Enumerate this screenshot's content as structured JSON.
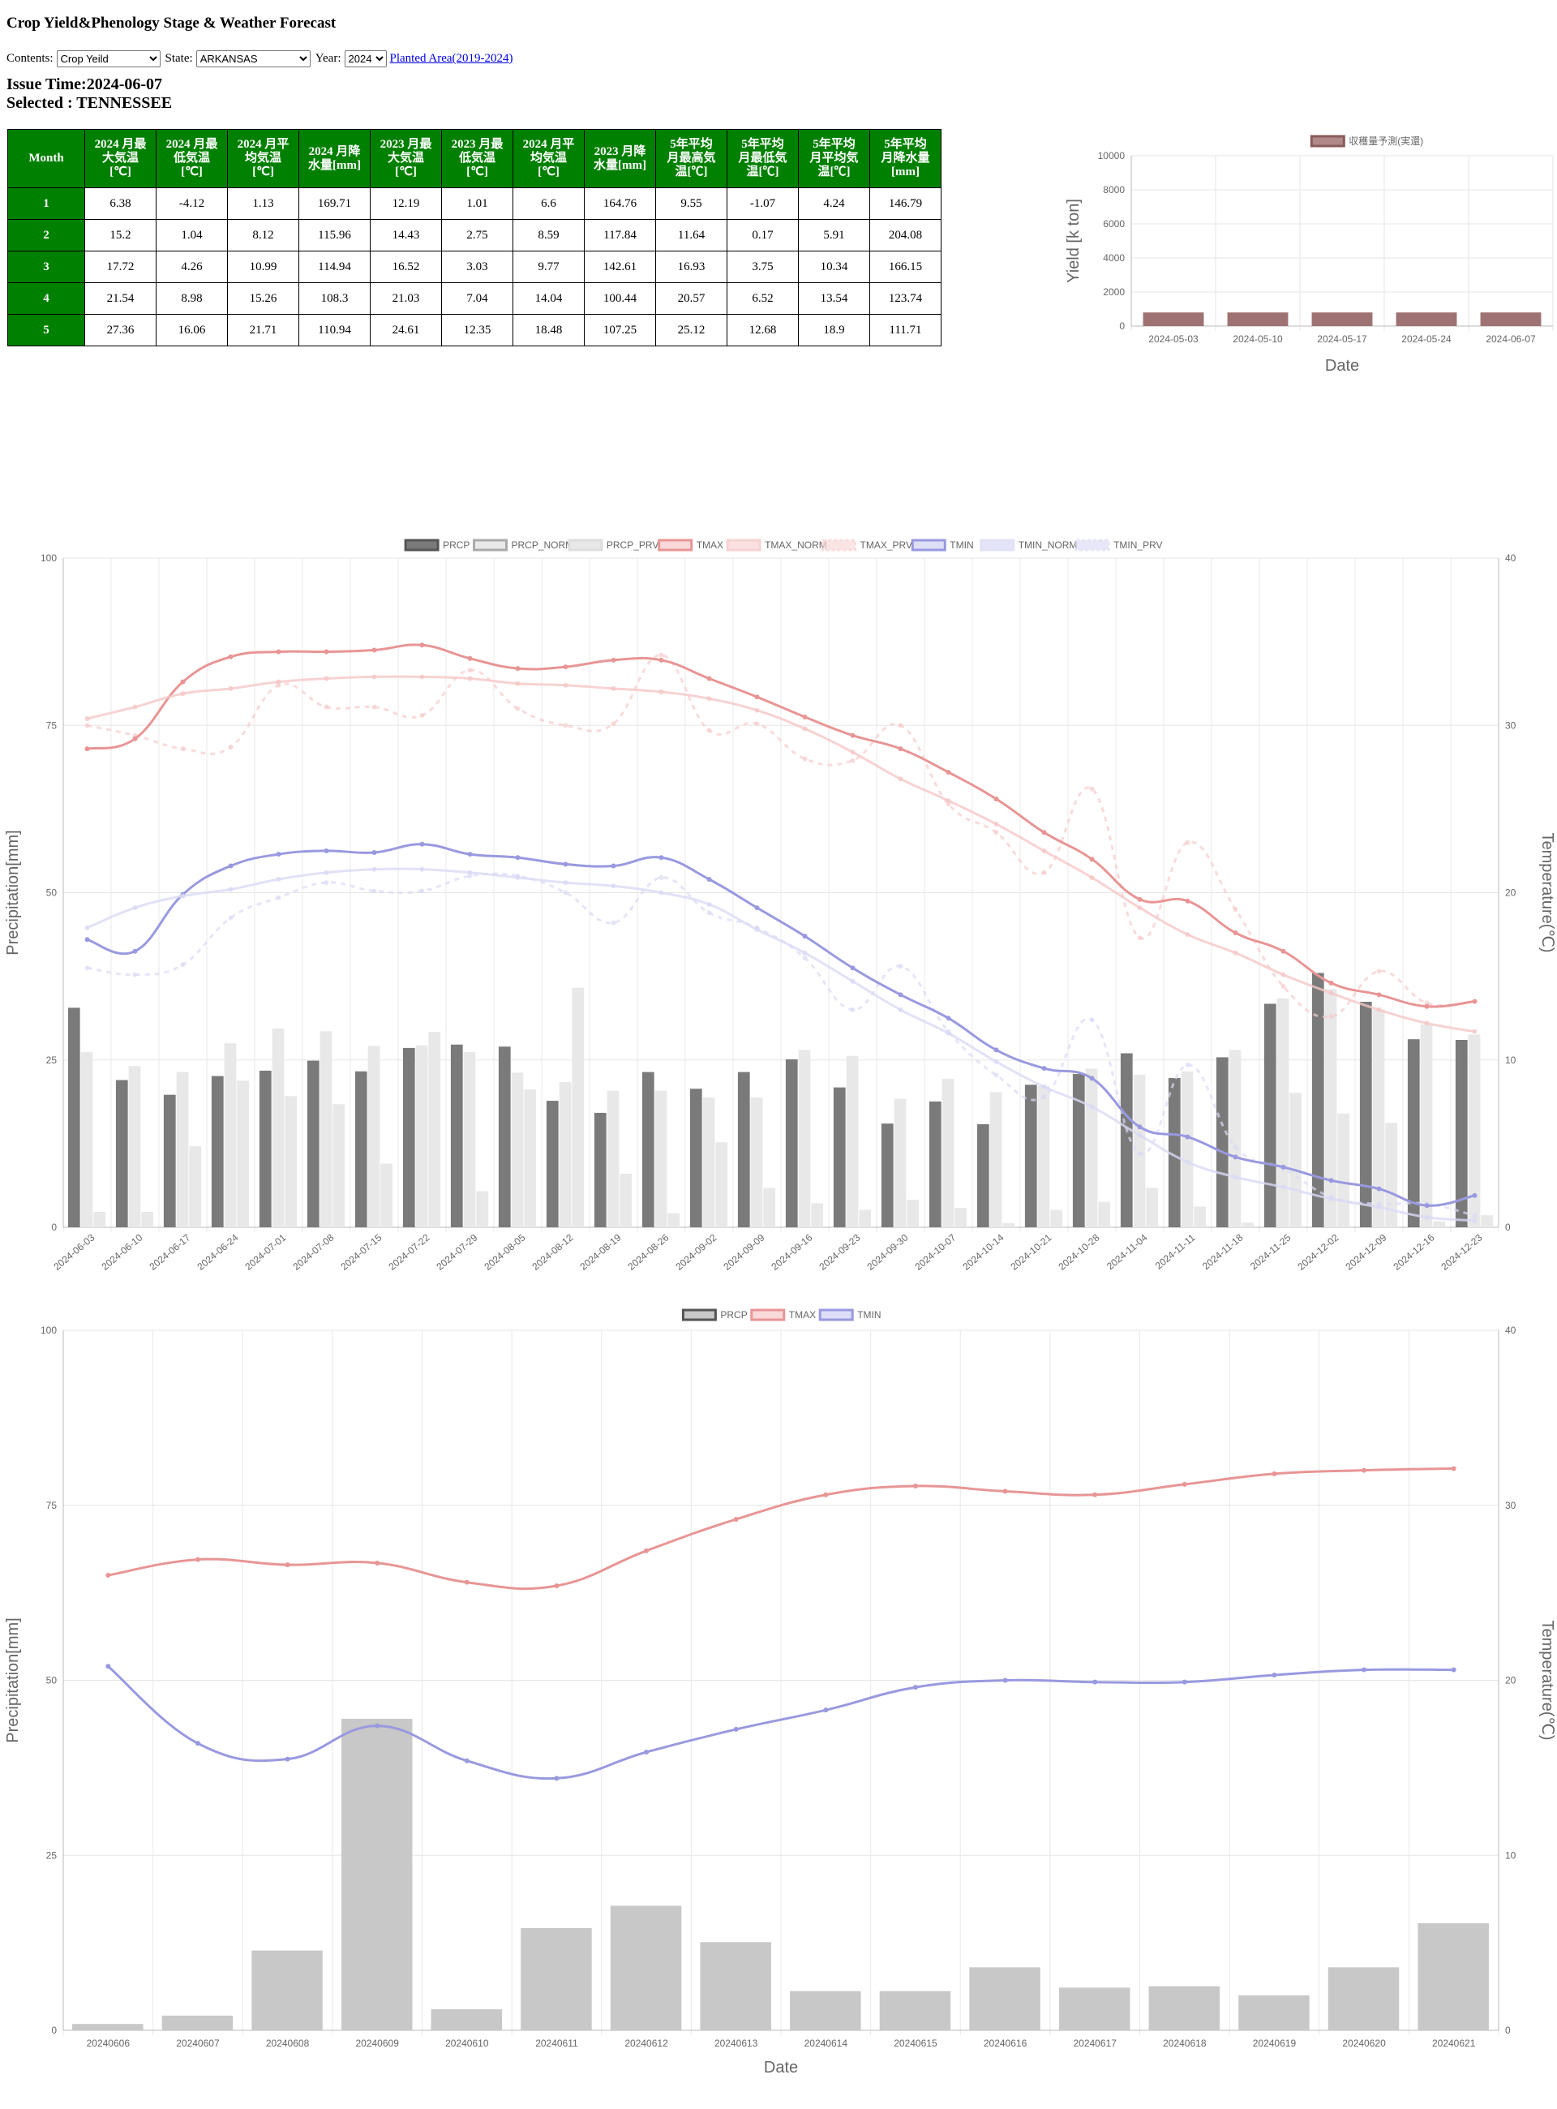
{
  "page": {
    "title": "Crop Yield&Phenology Stage & Weather Forecast",
    "contents_label": "Contents:",
    "contents_value": "Crop Yeild",
    "state_label": "State:",
    "state_value": "ARKANSAS",
    "year_label": "Year:",
    "year_value": "2024",
    "planted_link": "Planted Area(2019-2024)",
    "issue_time": "Issue Time:2024-06-07",
    "selected": "Selected : TENNESSEE"
  },
  "table": {
    "headers": [
      "Month",
      "2024 月最大気温[℃]",
      "2024 月最低気温[℃]",
      "2024 月平均気温[℃]",
      "2024 月降水量[mm]",
      "2023 月最大気温[℃]",
      "2023 月最低気温[℃]",
      "2024 月平均気温[℃]",
      "2023 月降水量[mm]",
      "5年平均月最高気温[℃]",
      "5年平均月最低気温[℃]",
      "5年平均月平均気温[℃]",
      "5年平均月降水量[mm]"
    ],
    "header_lines": [
      [
        "Month"
      ],
      [
        "2024 月最",
        "大気温",
        "[℃]"
      ],
      [
        "2024 月最",
        "低気温",
        "[℃]"
      ],
      [
        "2024 月平",
        "均気温",
        "[℃]"
      ],
      [
        "2024 月降",
        "水量[mm]"
      ],
      [
        "2023 月最",
        "大気温",
        "[℃]"
      ],
      [
        "2023 月最",
        "低気温",
        "[℃]"
      ],
      [
        "2024 月平",
        "均気温",
        "[℃]"
      ],
      [
        "2023 月降",
        "水量[mm]"
      ],
      [
        "5年平均",
        "月最高気",
        "温[℃]"
      ],
      [
        "5年平均",
        "月最低気",
        "温[℃]"
      ],
      [
        "5年平均",
        "月平均気",
        "温[℃]"
      ],
      [
        "5年平均",
        "月降水量",
        "[mm]"
      ]
    ],
    "rows": [
      [
        "1",
        "6.38",
        "-4.12",
        "1.13",
        "169.71",
        "12.19",
        "1.01",
        "6.6",
        "164.76",
        "9.55",
        "-1.07",
        "4.24",
        "146.79"
      ],
      [
        "2",
        "15.2",
        "1.04",
        "8.12",
        "115.96",
        "14.43",
        "2.75",
        "8.59",
        "117.84",
        "11.64",
        "0.17",
        "5.91",
        "204.08"
      ],
      [
        "3",
        "17.72",
        "4.26",
        "10.99",
        "114.94",
        "16.52",
        "3.03",
        "9.77",
        "142.61",
        "16.93",
        "3.75",
        "10.34",
        "166.15"
      ],
      [
        "4",
        "21.54",
        "8.98",
        "15.26",
        "108.3",
        "21.03",
        "7.04",
        "14.04",
        "100.44",
        "20.57",
        "6.52",
        "13.54",
        "123.74"
      ],
      [
        "5",
        "27.36",
        "16.06",
        "21.71",
        "110.94",
        "24.61",
        "12.35",
        "18.48",
        "107.25",
        "25.12",
        "12.68",
        "18.9",
        "111.71"
      ]
    ]
  },
  "chart_data": [
    {
      "type": "bar",
      "categories": [
        "2024-05-03",
        "2024-05-10",
        "2024-05-17",
        "2024-05-24",
        "2024-06-07"
      ],
      "series": [
        {
          "name": "収穫量予測(実還)",
          "values": [
            800,
            800,
            800,
            800,
            800
          ]
        }
      ],
      "xlabel": "Date",
      "ylabel": "Yield [k ton]",
      "ylim": [
        0,
        10000
      ],
      "yticks": [
        0,
        2000,
        4000,
        6000,
        8000,
        10000
      ],
      "colors": {
        "bar": "#9e7272"
      }
    },
    {
      "type": "bar",
      "categories": [
        "2024-06-03",
        "2024-06-10",
        "2024-06-17",
        "2024-06-24",
        "2024-07-01",
        "2024-07-08",
        "2024-07-15",
        "2024-07-22",
        "2024-07-29",
        "2024-08-05",
        "2024-08-12",
        "2024-08-19",
        "2024-08-26",
        "2024-09-02",
        "2024-09-09",
        "2024-09-16",
        "2024-09-23",
        "2024-09-30",
        "2024-10-07",
        "2024-10-14",
        "2024-10-21",
        "2024-10-28",
        "2024-11-04",
        "2024-11-11",
        "2024-11-18",
        "2024-11-25",
        "2024-12-02",
        "2024-12-09",
        "2024-12-16",
        "2024-12-23"
      ],
      "legend": [
        "PRCP",
        "PRCP_NORM",
        "PRCP_PRV",
        "TMAX",
        "TMAX_NORM",
        "TMAX_PRV",
        "TMIN",
        "TMIN_NORM",
        "TMIN_PRV"
      ],
      "bar_series": [
        {
          "name": "PRCP",
          "values": [
            32.8,
            22,
            19.8,
            22.6,
            23.4,
            24.9,
            23.3,
            26.8,
            27.3,
            27,
            18.9,
            17.1,
            23.2,
            20.7,
            23.2,
            25.1,
            20.9,
            15.5,
            18.8,
            15.4,
            21.3,
            22.9,
            26,
            22.3,
            25.4,
            33.4,
            38,
            33.7,
            28.1,
            28
          ],
          "color": "#7a7a7a"
        },
        {
          "name": "PRCP_NORM",
          "values": [
            26.2,
            24.1,
            23.2,
            27.5,
            29.7,
            29.3,
            27.1,
            27.2,
            26.2,
            23.1,
            21.7,
            20.4,
            20.4,
            19.4,
            19.4,
            26.5,
            25.6,
            19.2,
            22.2,
            20.2,
            21.1,
            23.7,
            22.8,
            23.3,
            26.5,
            34.2,
            35.6,
            32.5,
            30.3,
            28.8
          ],
          "color": "#e8e8e8"
        },
        {
          "name": "PRCP_PRV",
          "values": [
            2.3,
            2.3,
            12.1,
            21.9,
            19.6,
            18.4,
            9.5,
            29.2,
            5.4,
            20.6,
            35.8,
            8,
            2.1,
            12.7,
            5.9,
            3.6,
            2.6,
            4.1,
            2.9,
            0.6,
            2.6,
            3.8,
            5.9,
            3.1,
            0.7,
            20.1,
            17,
            15.6,
            0.9,
            1.8
          ],
          "color": "#e8e8e8"
        }
      ],
      "line_series": [
        {
          "name": "TMAX",
          "values": [
            28.6,
            29.2,
            32.6,
            34.1,
            34.4,
            34.4,
            34.5,
            34.8,
            34,
            33.4,
            33.5,
            33.9,
            33.9,
            32.8,
            31.7,
            30.5,
            29.4,
            28.6,
            27.2,
            25.6,
            23.6,
            22,
            19.6,
            19.5,
            17.6,
            16.5,
            14.6,
            13.9,
            13.2,
            13.5
          ],
          "color": "#e89595",
          "dash": false,
          "opacity": 1
        },
        {
          "name": "TMAX_NORM",
          "values": [
            30.4,
            31.1,
            31.9,
            32.2,
            32.6,
            32.8,
            32.9,
            32.9,
            32.8,
            32.5,
            32.4,
            32.2,
            32,
            31.6,
            30.9,
            29.8,
            28.4,
            26.8,
            25.5,
            24.1,
            22.5,
            20.9,
            19.1,
            17.5,
            16.4,
            15.1,
            14,
            13,
            12.2,
            11.7
          ],
          "color": "#f5c7c7",
          "dash": false,
          "opacity": 0.8
        },
        {
          "name": "TMAX_PRV",
          "values": [
            30,
            29.4,
            28.6,
            28.7,
            32.4,
            31.1,
            31.1,
            30.6,
            33.3,
            31,
            30,
            30.1,
            34.2,
            29.7,
            30.1,
            28,
            27.9,
            30,
            25.3,
            23.6,
            21.2,
            26.2,
            17.3,
            23,
            19,
            14.4,
            12.6,
            15.3,
            13.4,
            13.5
          ],
          "color": "#f7cccc",
          "dash": true,
          "opacity": 0.7
        },
        {
          "name": "TMIN",
          "values": [
            17.2,
            16.5,
            19.9,
            21.6,
            22.3,
            22.5,
            22.4,
            22.9,
            22.3,
            22.1,
            21.7,
            21.6,
            22.1,
            20.8,
            19.1,
            17.4,
            15.5,
            13.9,
            12.5,
            10.6,
            9.5,
            8.9,
            6,
            5.4,
            4.2,
            3.6,
            2.8,
            2.3,
            1.3,
            1.9
          ],
          "color": "#9999e0",
          "dash": false,
          "opacity": 1
        },
        {
          "name": "TMIN_NORM",
          "values": [
            17.9,
            19.1,
            19.8,
            20.2,
            20.8,
            21.2,
            21.4,
            21.4,
            21.2,
            20.9,
            20.6,
            20.4,
            20,
            19.3,
            17.8,
            16.4,
            14.7,
            13,
            11.6,
            9.9,
            8.4,
            7.2,
            5.5,
            3.9,
            3,
            2.4,
            1.7,
            1.2,
            0.6,
            0.4
          ],
          "color": "#dadaf5",
          "dash": false,
          "opacity": 0.8
        },
        {
          "name": "TMIN_PRV",
          "values": [
            15.5,
            15.1,
            15.7,
            18.5,
            19.7,
            20.6,
            20.1,
            20.1,
            21,
            21,
            20,
            18.2,
            20.9,
            18.8,
            17.9,
            16.1,
            13,
            15.6,
            11.7,
            9.1,
            7.8,
            12.4,
            4.4,
            9.7,
            4.8,
            3.5,
            1.8,
            1.4,
            1.4,
            0.7
          ],
          "color": "#dadaf5",
          "dash": true,
          "opacity": 0.7
        }
      ],
      "xlabel": "Date",
      "ylabel_left": "Precipitation[mm]",
      "ylabel_right": "Temperature(℃)",
      "ylim_left": [
        0,
        100
      ],
      "ylim_right": [
        0,
        40
      ],
      "yticks_left": [
        0,
        25,
        50,
        75,
        100
      ],
      "yticks_right": [
        0,
        10,
        20,
        30,
        40
      ]
    },
    {
      "type": "bar",
      "categories": [
        "20240606",
        "20240607",
        "20240608",
        "20240609",
        "20240610",
        "20240611",
        "20240612",
        "20240613",
        "20240614",
        "20240615",
        "20240616",
        "20240617",
        "20240618",
        "20240619",
        "20240620",
        "20240621"
      ],
      "legend": [
        "PRCP",
        "TMAX",
        "TMIN"
      ],
      "bar_series": [
        {
          "name": "PRCP",
          "values": [
            0.9,
            2.1,
            11.4,
            44.5,
            3,
            14.6,
            17.8,
            12.6,
            5.6,
            5.6,
            9,
            6.1,
            6.3,
            5,
            9,
            15.3
          ],
          "color": "#c8c8c8"
        }
      ],
      "line_series": [
        {
          "name": "TMAX",
          "values": [
            26,
            26.9,
            26.6,
            26.7,
            25.6,
            25.4,
            27.4,
            29.2,
            30.6,
            31.1,
            30.8,
            30.6,
            31.2,
            31.8,
            32,
            32.1
          ],
          "color": "#e89595",
          "dash": false,
          "opacity": 1
        },
        {
          "name": "TMIN",
          "values": [
            20.8,
            16.4,
            15.5,
            17.4,
            15.4,
            14.4,
            15.9,
            17.2,
            18.3,
            19.6,
            20,
            19.9,
            19.9,
            20.3,
            20.6,
            20.6
          ],
          "color": "#9999e0",
          "dash": false,
          "opacity": 1
        }
      ],
      "xlabel": "Date",
      "ylabel_left": "Precipitation[mm]",
      "ylabel_right": "Temperature(℃)",
      "ylim_left": [
        0,
        100
      ],
      "ylim_right": [
        0,
        40
      ],
      "yticks_left": [
        0,
        25,
        50,
        75,
        100
      ],
      "yticks_right": [
        0,
        10,
        20,
        30,
        40
      ]
    }
  ]
}
